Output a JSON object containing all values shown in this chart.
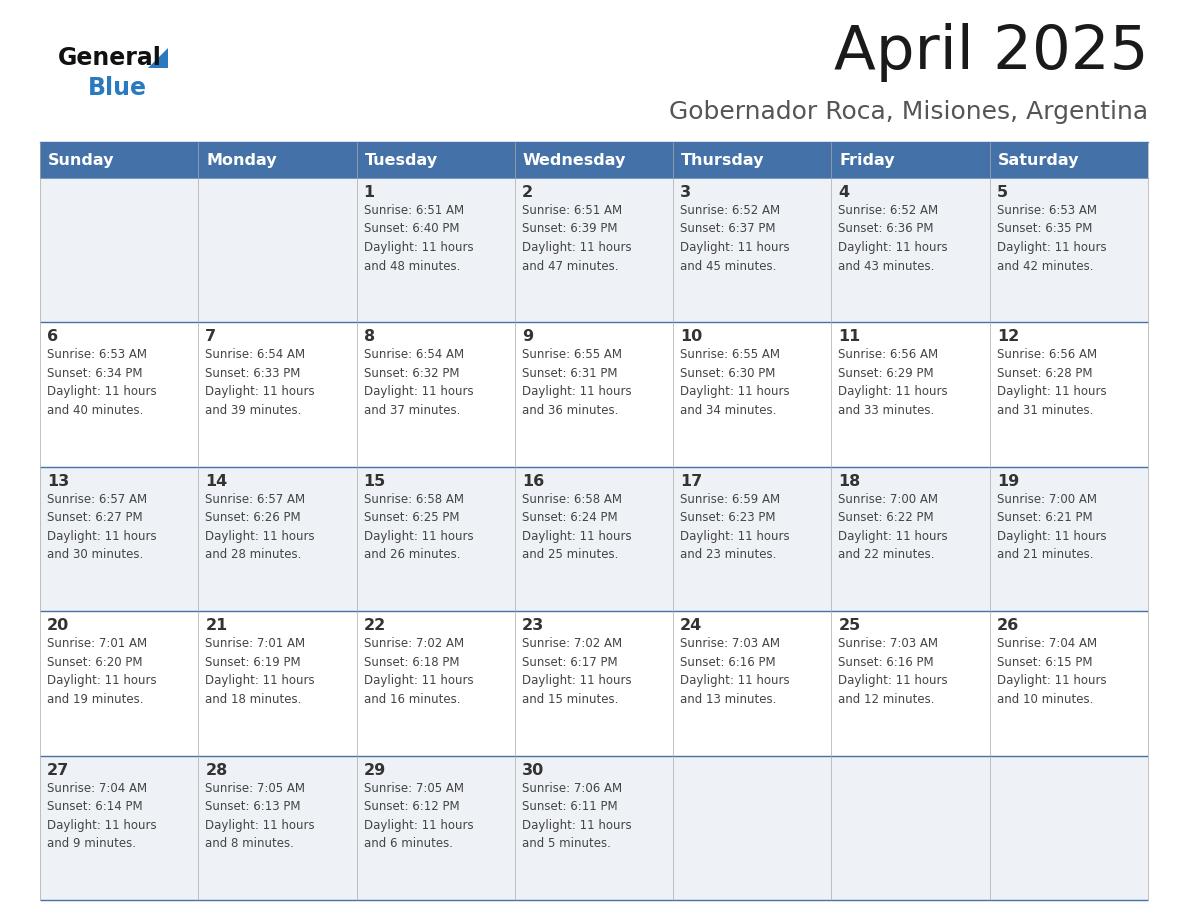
{
  "title": "April 2025",
  "subtitle": "Gobernador Roca, Misiones, Argentina",
  "header_bg_color": "#4472a8",
  "header_text_color": "#ffffff",
  "days_of_week": [
    "Sunday",
    "Monday",
    "Tuesday",
    "Wednesday",
    "Thursday",
    "Friday",
    "Saturday"
  ],
  "row_bg_light": "#eef2f7",
  "row_bg_white": "#ffffff",
  "cell_border_color": "#4472a8",
  "text_color": "#444444",
  "num_color": "#333333",
  "logo_general_color": "#111111",
  "logo_blue_color": "#2b7abf",
  "logo_triangle_color": "#2b7abf",
  "calendar_data": [
    [
      {
        "day": "",
        "info": ""
      },
      {
        "day": "",
        "info": ""
      },
      {
        "day": "1",
        "info": "Sunrise: 6:51 AM\nSunset: 6:40 PM\nDaylight: 11 hours\nand 48 minutes."
      },
      {
        "day": "2",
        "info": "Sunrise: 6:51 AM\nSunset: 6:39 PM\nDaylight: 11 hours\nand 47 minutes."
      },
      {
        "day": "3",
        "info": "Sunrise: 6:52 AM\nSunset: 6:37 PM\nDaylight: 11 hours\nand 45 minutes."
      },
      {
        "day": "4",
        "info": "Sunrise: 6:52 AM\nSunset: 6:36 PM\nDaylight: 11 hours\nand 43 minutes."
      },
      {
        "day": "5",
        "info": "Sunrise: 6:53 AM\nSunset: 6:35 PM\nDaylight: 11 hours\nand 42 minutes."
      }
    ],
    [
      {
        "day": "6",
        "info": "Sunrise: 6:53 AM\nSunset: 6:34 PM\nDaylight: 11 hours\nand 40 minutes."
      },
      {
        "day": "7",
        "info": "Sunrise: 6:54 AM\nSunset: 6:33 PM\nDaylight: 11 hours\nand 39 minutes."
      },
      {
        "day": "8",
        "info": "Sunrise: 6:54 AM\nSunset: 6:32 PM\nDaylight: 11 hours\nand 37 minutes."
      },
      {
        "day": "9",
        "info": "Sunrise: 6:55 AM\nSunset: 6:31 PM\nDaylight: 11 hours\nand 36 minutes."
      },
      {
        "day": "10",
        "info": "Sunrise: 6:55 AM\nSunset: 6:30 PM\nDaylight: 11 hours\nand 34 minutes."
      },
      {
        "day": "11",
        "info": "Sunrise: 6:56 AM\nSunset: 6:29 PM\nDaylight: 11 hours\nand 33 minutes."
      },
      {
        "day": "12",
        "info": "Sunrise: 6:56 AM\nSunset: 6:28 PM\nDaylight: 11 hours\nand 31 minutes."
      }
    ],
    [
      {
        "day": "13",
        "info": "Sunrise: 6:57 AM\nSunset: 6:27 PM\nDaylight: 11 hours\nand 30 minutes."
      },
      {
        "day": "14",
        "info": "Sunrise: 6:57 AM\nSunset: 6:26 PM\nDaylight: 11 hours\nand 28 minutes."
      },
      {
        "day": "15",
        "info": "Sunrise: 6:58 AM\nSunset: 6:25 PM\nDaylight: 11 hours\nand 26 minutes."
      },
      {
        "day": "16",
        "info": "Sunrise: 6:58 AM\nSunset: 6:24 PM\nDaylight: 11 hours\nand 25 minutes."
      },
      {
        "day": "17",
        "info": "Sunrise: 6:59 AM\nSunset: 6:23 PM\nDaylight: 11 hours\nand 23 minutes."
      },
      {
        "day": "18",
        "info": "Sunrise: 7:00 AM\nSunset: 6:22 PM\nDaylight: 11 hours\nand 22 minutes."
      },
      {
        "day": "19",
        "info": "Sunrise: 7:00 AM\nSunset: 6:21 PM\nDaylight: 11 hours\nand 21 minutes."
      }
    ],
    [
      {
        "day": "20",
        "info": "Sunrise: 7:01 AM\nSunset: 6:20 PM\nDaylight: 11 hours\nand 19 minutes."
      },
      {
        "day": "21",
        "info": "Sunrise: 7:01 AM\nSunset: 6:19 PM\nDaylight: 11 hours\nand 18 minutes."
      },
      {
        "day": "22",
        "info": "Sunrise: 7:02 AM\nSunset: 6:18 PM\nDaylight: 11 hours\nand 16 minutes."
      },
      {
        "day": "23",
        "info": "Sunrise: 7:02 AM\nSunset: 6:17 PM\nDaylight: 11 hours\nand 15 minutes."
      },
      {
        "day": "24",
        "info": "Sunrise: 7:03 AM\nSunset: 6:16 PM\nDaylight: 11 hours\nand 13 minutes."
      },
      {
        "day": "25",
        "info": "Sunrise: 7:03 AM\nSunset: 6:16 PM\nDaylight: 11 hours\nand 12 minutes."
      },
      {
        "day": "26",
        "info": "Sunrise: 7:04 AM\nSunset: 6:15 PM\nDaylight: 11 hours\nand 10 minutes."
      }
    ],
    [
      {
        "day": "27",
        "info": "Sunrise: 7:04 AM\nSunset: 6:14 PM\nDaylight: 11 hours\nand 9 minutes."
      },
      {
        "day": "28",
        "info": "Sunrise: 7:05 AM\nSunset: 6:13 PM\nDaylight: 11 hours\nand 8 minutes."
      },
      {
        "day": "29",
        "info": "Sunrise: 7:05 AM\nSunset: 6:12 PM\nDaylight: 11 hours\nand 6 minutes."
      },
      {
        "day": "30",
        "info": "Sunrise: 7:06 AM\nSunset: 6:11 PM\nDaylight: 11 hours\nand 5 minutes."
      },
      {
        "day": "",
        "info": ""
      },
      {
        "day": "",
        "info": ""
      },
      {
        "day": "",
        "info": ""
      }
    ]
  ]
}
